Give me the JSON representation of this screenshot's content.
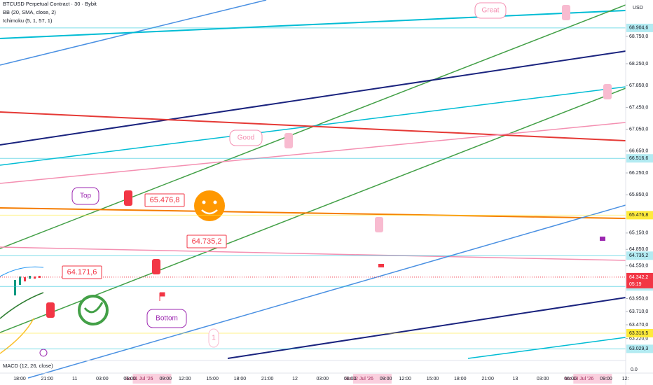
{
  "header": {
    "symbol": "BTCUSD Perpetual Contract · 30 · Bybit",
    "indicators": [
      "BB (20, SMA, close, 2)",
      "Ichimoku (5, 1, 57, 1)"
    ]
  },
  "chart_data": {
    "type": "price",
    "currency": "USD",
    "ylim": [
      62816,
      69416
    ],
    "yticks": [
      {
        "value": 68750,
        "label": "68.750,0"
      },
      {
        "value": 68250,
        "label": "68.250,0"
      },
      {
        "value": 67850,
        "label": "67.850,0"
      },
      {
        "value": 67450,
        "label": "67.450,0"
      },
      {
        "value": 67050,
        "label": "67.050,0"
      },
      {
        "value": 66650,
        "label": "66.650,0"
      },
      {
        "value": 66250,
        "label": "66.250,0"
      },
      {
        "value": 65850,
        "label": "65.850,0"
      },
      {
        "value": 65150,
        "label": "65.150,0"
      },
      {
        "value": 64850,
        "label": "64.850,0"
      },
      {
        "value": 64550,
        "label": "64.550,0"
      },
      {
        "value": 63950,
        "label": "63.950,0"
      },
      {
        "value": 63710,
        "label": "63.710,0"
      },
      {
        "value": 63470,
        "label": "63.470,0"
      },
      {
        "value": 63220,
        "label": "63.220,0"
      }
    ],
    "price_levels": [
      {
        "value": 68904.6,
        "label": "68.904,6",
        "color": "#26c6da"
      },
      {
        "value": 66516.6,
        "label": "66.516,6",
        "color": "#26c6da"
      },
      {
        "value": 65476.8,
        "label": "65.476,8",
        "color": "#ffeb3b"
      },
      {
        "value": 64735.2,
        "label": "64.735,2",
        "color": "#26c6da"
      },
      {
        "value": 64171.6,
        "label": "64.171,6",
        "color": "#26c6da"
      },
      {
        "value": 63316.5,
        "label": "63.316,5",
        "color": "#ffeb3b"
      },
      {
        "value": 63029.3,
        "label": "63.029,3",
        "color": "#26c6da"
      }
    ],
    "last_price": {
      "value": 64342.2,
      "label": "64.342,2",
      "countdown": "05:19",
      "color": "#f23645"
    },
    "categories": [
      "18:00",
      "21:00",
      "11",
      "03:00",
      "06:00",
      "09:00",
      "12:00",
      "15:00",
      "18:00",
      "21:00",
      "12",
      "03:00",
      "06:00",
      "09:00",
      "12:00",
      "15:00",
      "18:00",
      "21:00",
      "13",
      "03:00",
      "06:00",
      "09:00",
      "12:"
    ],
    "x_highlights": [
      "Sa 11 Jul '26",
      "Su 12 Jul '26",
      "Mo 13 Jul '26"
    ]
  },
  "annotations": [
    "Top",
    "Good",
    "Great",
    "Bottom",
    "1",
    "65.476,8",
    "64.735,2",
    "64.171,6"
  ],
  "macd": {
    "title": "MACD (12, 26, close)",
    "axis_label": "0.0"
  }
}
